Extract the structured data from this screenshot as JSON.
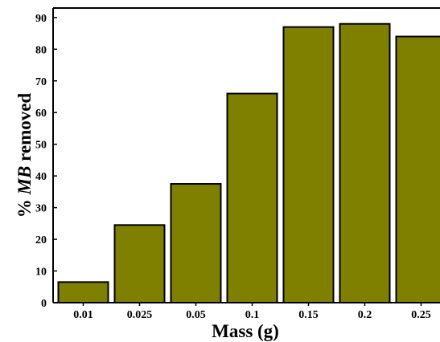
{
  "chart_data": {
    "type": "bar",
    "categories": [
      "0.01",
      "0.025",
      "0.05",
      "0.1",
      "0.15",
      "0.2",
      "0.25"
    ],
    "values": [
      6.5,
      24.5,
      37.5,
      66,
      87,
      88,
      84
    ],
    "title": "",
    "xlabel": "Mass (g)",
    "ylabel": {
      "prefix": "% ",
      "italic": "MB",
      "suffix": " removed"
    },
    "ylim": [
      0,
      93
    ],
    "yticks": [
      0,
      10,
      20,
      30,
      40,
      50,
      60,
      70,
      80,
      90
    ],
    "bar_color": "#808000",
    "grid": false,
    "legend": "none"
  }
}
